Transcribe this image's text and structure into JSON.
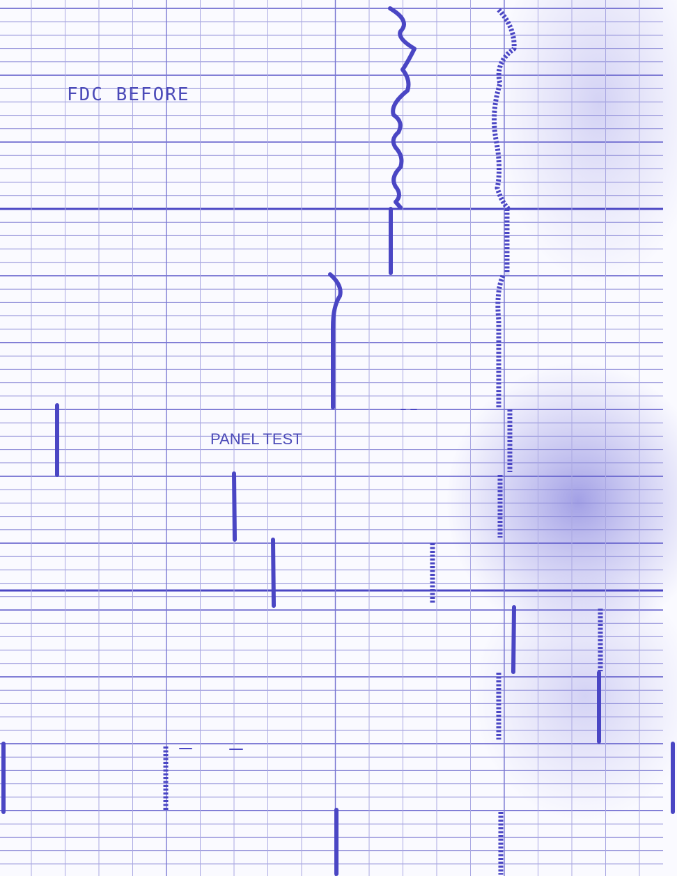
{
  "annotations": {
    "top_label": "FDC BEFORE",
    "middle_label": "PANEL TEST"
  }
}
